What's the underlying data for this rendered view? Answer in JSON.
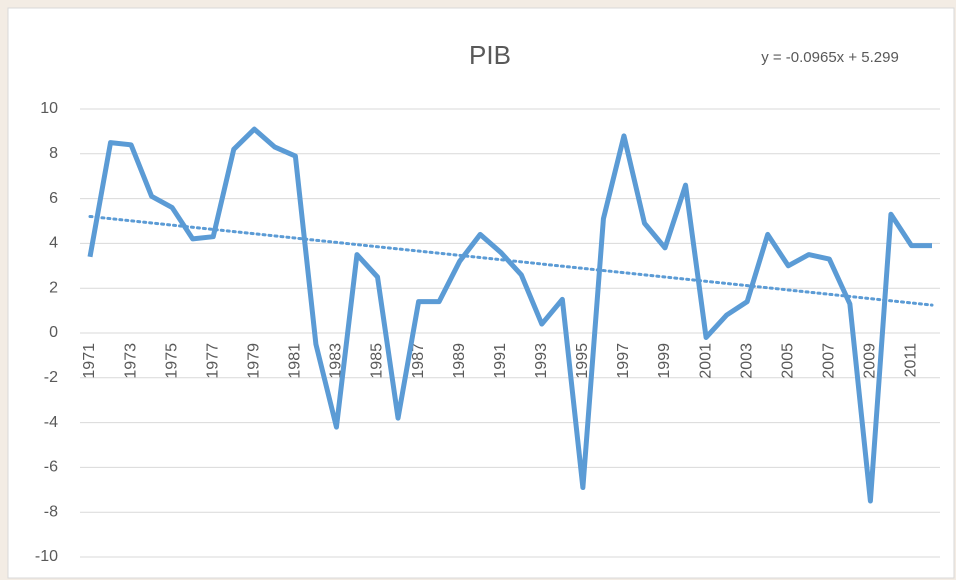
{
  "chart_data": {
    "type": "line",
    "title": "PIB",
    "x": [
      1971,
      1972,
      1973,
      1974,
      1975,
      1976,
      1977,
      1978,
      1979,
      1980,
      1981,
      1982,
      1983,
      1984,
      1985,
      1986,
      1987,
      1988,
      1989,
      1990,
      1991,
      1992,
      1993,
      1994,
      1995,
      1996,
      1997,
      1998,
      1999,
      2000,
      2001,
      2002,
      2003,
      2004,
      2005,
      2006,
      2007,
      2008,
      2009,
      2010,
      2011,
      2012
    ],
    "values": [
      3.4,
      8.5,
      8.4,
      6.1,
      5.6,
      4.2,
      4.3,
      8.2,
      9.1,
      8.3,
      7.9,
      -0.5,
      -4.2,
      3.5,
      2.5,
      -3.8,
      1.4,
      1.4,
      3.2,
      4.4,
      3.6,
      2.6,
      0.4,
      1.5,
      -6.9,
      5.1,
      8.8,
      4.9,
      3.8,
      6.6,
      -0.2,
      0.8,
      1.4,
      4.4,
      3.0,
      3.5,
      3.3,
      1.3,
      -7.5,
      5.3,
      3.9,
      3.9
    ],
    "color": "#5b9bd5",
    "xticks": [
      1971,
      1973,
      1975,
      1977,
      1979,
      1981,
      1983,
      1985,
      1987,
      1989,
      1991,
      1993,
      1995,
      1997,
      1999,
      2001,
      2003,
      2005,
      2007,
      2009,
      2011
    ],
    "ylim": [
      -10,
      10
    ],
    "yticks": [
      -10,
      -8,
      -6,
      -4,
      -2,
      0,
      2,
      4,
      6,
      8,
      10
    ],
    "grid": true,
    "trendline": {
      "slope": -0.0965,
      "intercept": 5.299,
      "label": "y = -0.0965x + 5.299"
    }
  }
}
